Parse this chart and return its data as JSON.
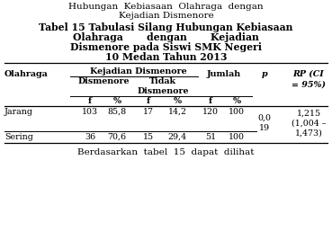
{
  "bg_color": "#ffffff",
  "text_color": "#000000",
  "line_color": "#000000",
  "title1": "Hubungan  Kebiasaan  Olahraga  dengan",
  "title2": "Kejadian Dismenore",
  "bold1": "Tabel 15 Tabulasi Silang Hubungan Kebiasaan",
  "bold2": "Olahraga       dengan       Kejadian",
  "bold3": "Dismenore pada Siswi SMK Negeri",
  "bold4": "10 Medan Tahun 2013",
  "header_group": "Kejadian Dismenore",
  "col_olahraga": "Olahraga",
  "col_dis": "Dismenore",
  "col_tidak": "Tidak\nDismenore",
  "col_jumlah": "Jumlah",
  "col_p": "p",
  "col_rp": "RP (CI\n= 95%)",
  "sub_f": "f",
  "sub_pct": "%",
  "row1": [
    "Jarang",
    "103",
    "85,8",
    "17",
    "14,2",
    "120",
    "100"
  ],
  "row2": [
    "Sering",
    "36",
    "70,6",
    "15",
    "29,4",
    "51",
    "100"
  ],
  "p_val": "0,0\n19",
  "rp_val": "1,215\n(1,004 –\n1,473)",
  "footer": "Berdasarkan  tabel  15  dapat  dilihat",
  "fs_title": 7.5,
  "fs_bold": 7.8,
  "fs_table": 6.8
}
